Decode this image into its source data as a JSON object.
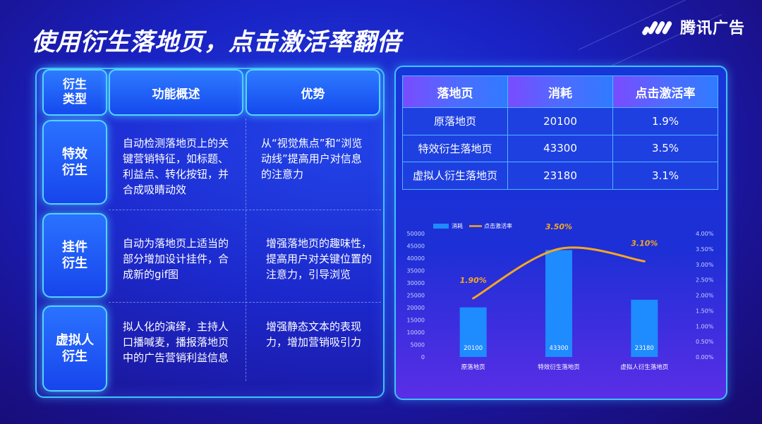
{
  "title": "使用衍生落地页，点击激活率翻倍",
  "logo": {
    "text": "腾讯广告",
    "icon": "tencent-ads-logo-icon"
  },
  "left_table": {
    "headers": [
      "衍生类型",
      "功能概述",
      "优势"
    ],
    "rows": [
      {
        "type": "特效衍生",
        "func": "自动检测落地页上的关键营销特征，如标题、利益点、转化按钮，并合成吸睛动效",
        "adv": "从“视觉焦点”和“浏览动线”提高用户对信息的注意力"
      },
      {
        "type": "挂件衍生",
        "func": "自动为落地页上适当的部分增加设计挂件，合成新的gif图",
        "adv": "增强落地页的趣味性，提高用户对关键位置的注意力，引导浏览"
      },
      {
        "type": "虚拟人衍生",
        "func": "拟人化的演绎，主持人口播喊麦，播报落地页中的广告营销利益信息",
        "adv": "增强静态文本的表现力，增加营销吸引力"
      }
    ]
  },
  "right_table": {
    "headers": [
      "落地页",
      "消耗",
      "点击激活率"
    ],
    "rows": [
      [
        "原落地页",
        "20100",
        "1.9%"
      ],
      [
        "特效衍生落地页",
        "43300",
        "3.5%"
      ],
      [
        "虚拟人衍生落地页",
        "23180",
        "3.1%"
      ]
    ]
  },
  "colors": {
    "bar": "#1e8bff",
    "line": "#f5a623",
    "accent": "#3fc3ff"
  },
  "chart_data": {
    "type": "bar",
    "categories": [
      "原落地页",
      "特效衍生落地页",
      "虚拟人衍生落地页"
    ],
    "series": [
      {
        "name": "消耗",
        "type": "bar",
        "values": [
          20100,
          43300,
          23180
        ],
        "labels": [
          "20100",
          "43300",
          "23180"
        ]
      },
      {
        "name": "点击激活率",
        "type": "line",
        "axis": "right",
        "values": [
          1.9,
          3.5,
          3.1
        ],
        "labels": [
          "1.90%",
          "3.50%",
          "3.10%"
        ]
      }
    ],
    "ylim": [
      0,
      50000
    ],
    "yticks": [
      "0",
      "5000",
      "10000",
      "15000",
      "20000",
      "25000",
      "30000",
      "35000",
      "40000",
      "45000",
      "50000"
    ],
    "y2lim": [
      0,
      4
    ],
    "y2ticks": [
      "0.00%",
      "0.50%",
      "1.00%",
      "1.50%",
      "2.00%",
      "2.50%",
      "3.00%",
      "3.50%",
      "4.00%"
    ],
    "legend": "top-left",
    "grid": false
  }
}
